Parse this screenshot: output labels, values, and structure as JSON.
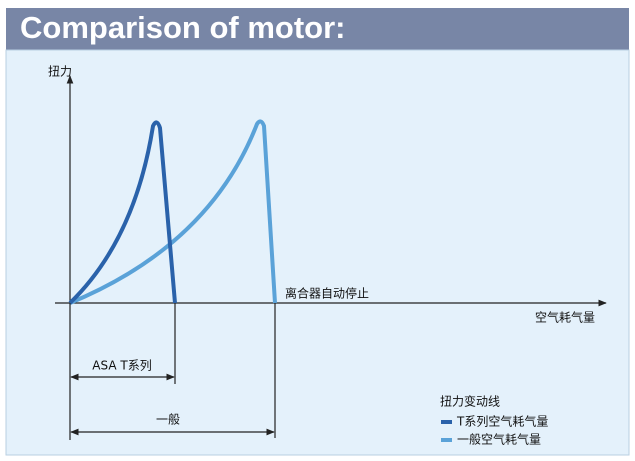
{
  "header": {
    "title": "Comparison of motor:"
  },
  "diagram": {
    "y_axis_label": "扭力",
    "x_axis_label": "空气耗气量",
    "stop_label": "离合器自动停止",
    "dimensions": [
      {
        "label": "ASA T系列"
      },
      {
        "label": "一般"
      }
    ],
    "legend": {
      "title": "扭力变动线",
      "items": [
        {
          "name": "T系列空气耗气量"
        },
        {
          "name": "一般空气耗气量"
        }
      ]
    }
  }
}
